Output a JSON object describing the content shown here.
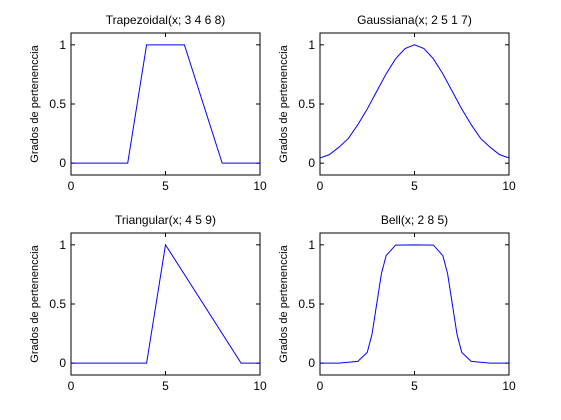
{
  "chart_data": [
    {
      "type": "line",
      "title": "Trapezoidal(x; 3 4 6 8)",
      "ylabel": "Grados de pertenenccia",
      "xlim": [
        0,
        10
      ],
      "ylim": [
        -0.1,
        1.1
      ],
      "xticks": [
        0,
        5,
        10
      ],
      "yticks": [
        0,
        0.5,
        1
      ],
      "xtick_labels": [
        "0",
        "5",
        "10"
      ],
      "ytick_labels": [
        "0",
        "0.5",
        "1"
      ],
      "color": "#0000ff",
      "grid": false,
      "x": [
        0,
        3,
        4,
        6,
        8,
        10
      ],
      "y": [
        0,
        0,
        1,
        1,
        0,
        0
      ]
    },
    {
      "type": "line",
      "title": "Gaussiana(x; 2 5 1 7)",
      "ylabel": "Grados de pertenenccia",
      "xlim": [
        0,
        10
      ],
      "ylim": [
        -0.1,
        1.1
      ],
      "xticks": [
        0,
        5,
        10
      ],
      "yticks": [
        0,
        0.5,
        1
      ],
      "xtick_labels": [
        "0",
        "5",
        "10"
      ],
      "ytick_labels": [
        "0",
        "0.5",
        "1"
      ],
      "color": "#0000ff",
      "grid": false,
      "x": [
        0,
        0.5,
        1,
        1.5,
        2,
        2.5,
        3,
        3.5,
        4,
        4.5,
        5,
        5.5,
        6,
        6.5,
        7,
        7.5,
        8,
        8.5,
        9,
        9.5,
        10
      ],
      "y": [
        0.044,
        0.072,
        0.135,
        0.209,
        0.325,
        0.458,
        0.607,
        0.755,
        0.882,
        0.969,
        1.0,
        0.969,
        0.882,
        0.755,
        0.607,
        0.458,
        0.325,
        0.209,
        0.135,
        0.072,
        0.044
      ]
    },
    {
      "type": "line",
      "title": "Triangular(x; 4 5 9)",
      "ylabel": "Grados de pertenenccia",
      "xlim": [
        0,
        10
      ],
      "ylim": [
        -0.1,
        1.1
      ],
      "xticks": [
        0,
        5,
        10
      ],
      "yticks": [
        0,
        0.5,
        1
      ],
      "xtick_labels": [
        "0",
        "5",
        "10"
      ],
      "ytick_labels": [
        "0",
        "0.5",
        "1"
      ],
      "color": "#0000ff",
      "grid": false,
      "x": [
        0,
        4,
        5,
        9,
        10
      ],
      "y": [
        0,
        0,
        1,
        0,
        0
      ]
    },
    {
      "type": "line",
      "title": "Bell(x; 2 8 5)",
      "ylabel": "Grados de pertenenccia",
      "xlim": [
        0,
        10
      ],
      "ylim": [
        -0.1,
        1.1
      ],
      "xticks": [
        0,
        5,
        10
      ],
      "yticks": [
        0,
        0.5,
        1
      ],
      "xtick_labels": [
        "0",
        "5",
        "10"
      ],
      "ytick_labels": [
        "0",
        "0.5",
        "1"
      ],
      "color": "#0000ff",
      "grid": false,
      "x": [
        0,
        1,
        2,
        2.5,
        2.75,
        3,
        3.25,
        3.5,
        4,
        5,
        6,
        6.5,
        6.75,
        7,
        7.25,
        7.5,
        8,
        9,
        10
      ],
      "y": [
        0.0,
        0.0004,
        0.015,
        0.091,
        0.243,
        0.5,
        0.757,
        0.909,
        0.998,
        1.0,
        0.998,
        0.909,
        0.757,
        0.5,
        0.243,
        0.091,
        0.015,
        0.0004,
        0.0
      ]
    }
  ]
}
